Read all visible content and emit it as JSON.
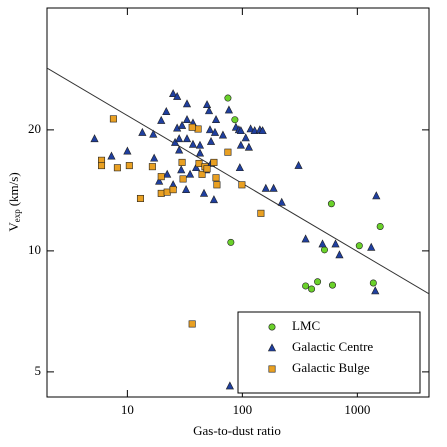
{
  "chart_data": {
    "type": "scatter",
    "xlabel": "Gas-to-dust ratio",
    "ylabel": {
      "main": "V",
      "sub": "exp",
      "rest": "(km/s)"
    },
    "xscale": "log",
    "yscale": "log",
    "xlim": [
      2,
      4200
    ],
    "ylim": [
      4.33,
      40.2
    ],
    "xticks": [
      10,
      100,
      1000
    ],
    "yticks": [
      5,
      10,
      20
    ],
    "legend": "lower right",
    "fit_line": {
      "color": "#333333",
      "x": [
        2,
        4200
      ],
      "y": [
        28.5,
        7.82
      ]
    },
    "series": [
      {
        "name": "LMC",
        "color": "#6ad12a",
        "marker": "circle",
        "x": [
          74.9,
          86.1,
          595,
          1580,
          79.4,
          1040,
          518,
          355,
          400,
          451,
          608,
          1377
        ],
        "values": [
          24.0,
          21.2,
          13.1,
          11.5,
          10.5,
          10.3,
          10.06,
          8.18,
          8.04,
          8.38,
          8.22,
          8.32
        ]
      },
      {
        "name": "Galactic Centre",
        "color": "#1f3f9f",
        "marker": "triangle",
        "x": [
          5.18,
          7.27,
          10,
          13.5,
          17.1,
          16.8,
          19.7,
          21.8,
          25.0,
          27.1,
          27.1,
          26.0,
          28.2,
          29.9,
          33.0,
          33.0,
          33.0,
          37.2,
          37.2,
          42.8,
          42.8,
          49.3,
          52.3,
          51.3,
          53.4,
          57.8,
          59.0,
          67.8,
          76.4,
          87.9,
          93.3,
          97.1,
          97.1,
          107,
          114,
          118,
          128,
          142,
          150,
          29.4,
          28.2,
          35.1,
          48.3,
          32.4,
          46.4,
          56.6,
          22.2,
          25.0,
          18.9,
          95.1,
          160,
          187,
          220,
          308,
          355,
          498,
          646,
          699,
          1321,
          1432,
          1462,
          77.9,
          53.4,
          39.6
        ],
        "values": [
          19.0,
          17.2,
          17.7,
          19.7,
          17.0,
          19.5,
          21.1,
          22.2,
          24.6,
          24.2,
          20.2,
          18.6,
          19.0,
          20.5,
          19.0,
          23.2,
          21.2,
          20.8,
          18.4,
          18.3,
          17.5,
          23.1,
          20.0,
          22.3,
          18.7,
          19.7,
          21.2,
          19.4,
          22.4,
          20.3,
          20.0,
          18.3,
          19.9,
          19.1,
          18.1,
          20.1,
          19.9,
          20.0,
          19.9,
          15.9,
          17.8,
          15.5,
          15.9,
          14.2,
          13.9,
          13.4,
          15.5,
          14.6,
          14.9,
          16.1,
          14.3,
          14.3,
          13.2,
          16.3,
          10.7,
          10.4,
          10.4,
          9.77,
          10.2,
          7.95,
          13.7,
          4.61,
          16.5,
          16.1
        ]
      },
      {
        "name": "Galactic Bulge",
        "color": "#e9a022",
        "marker": "square",
        "x": [
          7.56,
          5.96,
          5.96,
          8.19,
          10.4,
          13.0,
          16.5,
          19.7,
          19.7,
          22.2,
          25.0,
          29.9,
          41.2,
          42.0,
          44.6,
          47.3,
          56.6,
          60.1,
          59.0,
          74.9,
          99.1,
          145,
          36.6,
          36.6,
          30.5,
          49.3
        ],
        "values": [
          21.3,
          16.8,
          16.3,
          16.1,
          16.3,
          13.5,
          16.2,
          15.3,
          13.9,
          14.0,
          14.2,
          16.6,
          20.1,
          16.5,
          15.5,
          16.2,
          16.6,
          14.6,
          15.2,
          17.6,
          14.6,
          12.4,
          6.58,
          20.3,
          15.1,
          16.0
        ]
      }
    ]
  }
}
